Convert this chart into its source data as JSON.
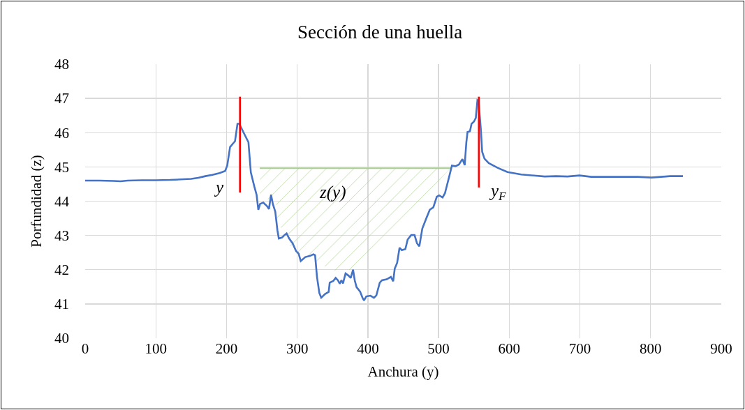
{
  "chart_data": {
    "type": "line",
    "title": "Sección de una huella",
    "xlabel": "Anchura (y)",
    "ylabel": "Porfundidad (z)",
    "xlim": [
      0,
      900
    ],
    "xticks": [
      0,
      100,
      200,
      300,
      400,
      500,
      600,
      700,
      800,
      900
    ],
    "ylim": [
      40,
      48
    ],
    "yticks": [
      40,
      41,
      42,
      43,
      44,
      45,
      46,
      47,
      48
    ],
    "grid": true,
    "series": [
      {
        "color": "#a9d18e",
        "x": [
          247,
          270,
          272,
          280,
          292,
          303,
          318,
          328,
          346,
          356,
          384,
          420,
          460,
          490,
          517
        ],
        "values": [
          44.96,
          44.96,
          44.96,
          44.96,
          44.96,
          44.96,
          44.96,
          44.96,
          44.96,
          44.96,
          44.96,
          44.96,
          44.96,
          44.96,
          44.96
        ],
        "upper": [
          44.96,
          44.96,
          44.96,
          44.96,
          44.96,
          44.96,
          44.96,
          44.96,
          44.96,
          44.96,
          44.96,
          44.96,
          44.96,
          44.96,
          44.96
        ],
        "lower": [
          44.2,
          43.92,
          43.35,
          43.15,
          42.6,
          42.4,
          42.3,
          42.2,
          42.03,
          41.95,
          42.03,
          42.8,
          43.7,
          44.35,
          44.96
        ]
      },
      {
        "color": "#4472c4",
        "x": [
          0,
          20,
          40,
          50,
          60,
          80,
          100,
          120,
          140,
          150,
          160,
          170,
          180,
          190,
          198,
          201,
          205,
          209,
          212,
          215.5,
          218,
          223,
          231,
          234.4,
          239.3,
          242.5,
          245,
          247.5,
          252,
          257,
          260,
          263,
          265.5,
          269,
          272,
          274,
          278.6,
          282,
          285,
          288.6,
          293.5,
          298.5,
          302,
          305,
          311.5,
          318,
          323,
          325.3,
          328,
          331.3,
          334,
          339.5,
          344.5,
          346,
          351,
          354.4,
          357.6,
          360.2,
          362.5,
          364.8,
          368.4,
          372.4,
          375.7,
          379,
          381.4,
          384,
          389,
          392.4,
          394.5,
          397.8,
          403.7,
          408.6,
          412,
          416.8,
          420,
          426.6,
          432.5,
          435.8,
          438,
          441.4,
          444.8,
          448,
          453,
          456.3,
          461.3,
          466,
          469.5,
          472.8,
          477,
          482.7,
          487.6,
          492.6,
          497.5,
          500.8,
          505.7,
          509,
          514,
          518.9,
          523.9,
          528.8,
          533.8,
          537,
          539.3,
          541,
          544.4,
          546.7,
          550,
          552.7,
          555,
          556.6,
          560,
          561.7,
          565,
          571,
          584,
          597.5,
          617,
          650,
          666.6,
          682.6,
          699.4,
          716,
          748.8,
          781.6,
          801.4,
          814.6,
          827.7,
          845.7
        ],
        "values": [
          44.6,
          44.6,
          44.59,
          44.58,
          44.6,
          44.61,
          44.61,
          44.62,
          44.64,
          44.65,
          44.68,
          44.73,
          44.77,
          44.82,
          44.88,
          45.04,
          45.58,
          45.68,
          45.75,
          46.26,
          46.26,
          46.05,
          45.72,
          44.84,
          44.43,
          44.19,
          43.75,
          43.92,
          43.96,
          43.86,
          43.77,
          44.19,
          43.92,
          43.69,
          43.15,
          42.91,
          42.94,
          43.01,
          43.06,
          42.91,
          42.77,
          42.54,
          42.47,
          42.25,
          42.37,
          42.4,
          42.45,
          42.42,
          41.79,
          41.32,
          41.18,
          41.29,
          41.35,
          41.62,
          41.67,
          41.76,
          41.69,
          41.59,
          41.69,
          41.6,
          41.89,
          41.83,
          41.76,
          42.0,
          41.69,
          41.49,
          41.36,
          41.18,
          41.1,
          41.22,
          41.24,
          41.18,
          41.25,
          41.62,
          41.69,
          41.72,
          41.79,
          41.66,
          42.03,
          42.2,
          42.64,
          42.57,
          42.6,
          42.88,
          43.01,
          43.01,
          42.77,
          42.68,
          43.2,
          43.5,
          43.75,
          43.82,
          44.13,
          44.17,
          44.11,
          44.23,
          44.63,
          45.04,
          45.02,
          45.07,
          45.23,
          45.05,
          45.72,
          46.02,
          46.04,
          46.26,
          46.32,
          46.43,
          46.95,
          46.93,
          46.05,
          45.44,
          45.24,
          45.11,
          44.97,
          44.85,
          44.78,
          44.72,
          44.73,
          44.72,
          44.75,
          44.71,
          44.71,
          44.71,
          44.69,
          44.71,
          44.73,
          44.73
        ]
      },
      {
        "color": "#ff0000",
        "x": [
          219,
          219
        ],
        "values": [
          44.25,
          47.05
        ]
      },
      {
        "color": "#ff0000",
        "x": [
          557,
          557
        ],
        "values": [
          44.4,
          47.05
        ]
      }
    ],
    "annotations": [
      "y",
      "z(y)",
      "y$_{F}$"
    ]
  }
}
